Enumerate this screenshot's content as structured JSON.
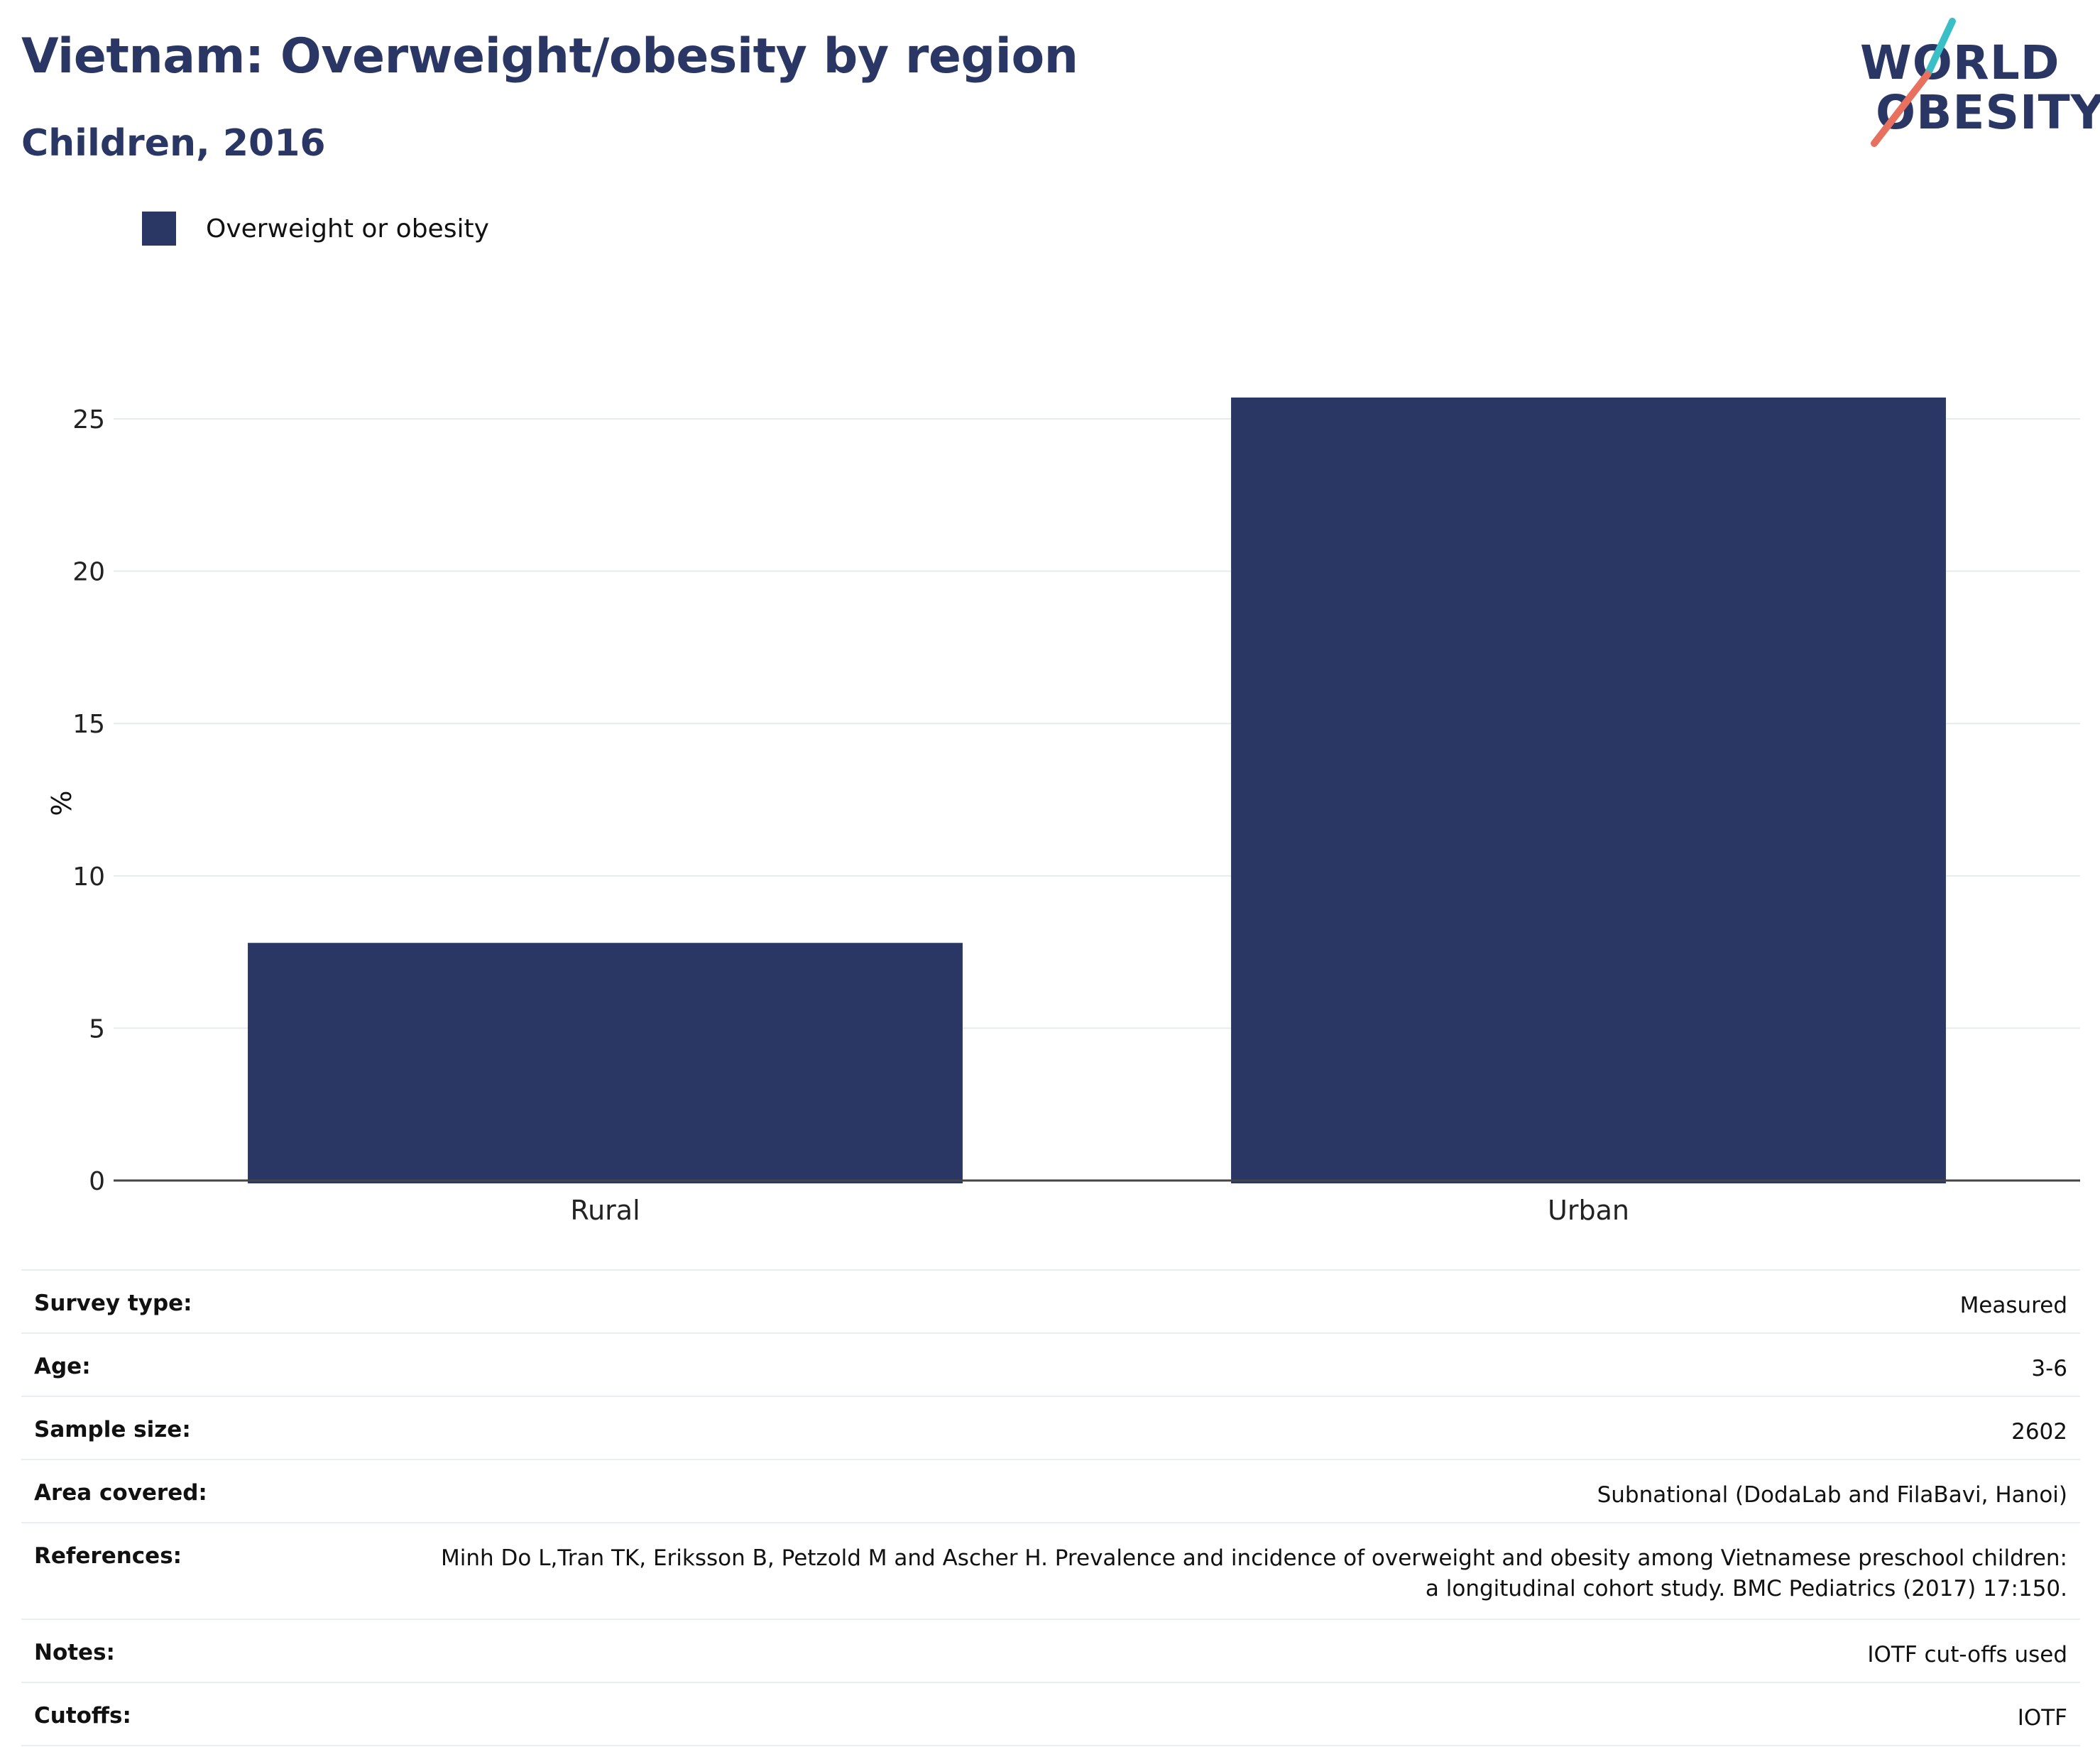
{
  "header": {
    "title": "Vietnam: Overweight/obesity by region",
    "subtitle": "Children, 2016"
  },
  "logo": {
    "line1": "WORLD",
    "line2": "OBESITY",
    "accent_teal": "#3bbfc6",
    "accent_coral": "#e8705e"
  },
  "chart_data": {
    "type": "bar",
    "categories": [
      "Rural",
      "Urban"
    ],
    "series": [
      {
        "name": "Overweight or obesity",
        "values": [
          7.8,
          25.7
        ],
        "color": "#2a3764"
      }
    ],
    "ylabel": "%",
    "xlabel": "",
    "ylim": [
      0,
      25.7
    ],
    "yticks": [
      0,
      5,
      10,
      15,
      20,
      25
    ],
    "grid": true,
    "legend": "top-left"
  },
  "metadata": [
    {
      "key": "Survey type:",
      "value": "Measured"
    },
    {
      "key": "Age:",
      "value": "3-6"
    },
    {
      "key": "Sample size:",
      "value": "2602"
    },
    {
      "key": "Area covered:",
      "value": "Subnational (DodaLab and FilaBavi, Hanoi)"
    },
    {
      "key": "References:",
      "value": "Minh Do L,Tran TK, Eriksson B, Petzold M and Ascher H. Prevalence and incidence of overweight and obesity among Vietnamese preschool children: a longitudinal cohort study. BMC Pediatrics (2017) 17:150."
    },
    {
      "key": "Notes:",
      "value": "IOTF cut-offs used"
    },
    {
      "key": "Cutoffs:",
      "value": "IOTF"
    }
  ]
}
